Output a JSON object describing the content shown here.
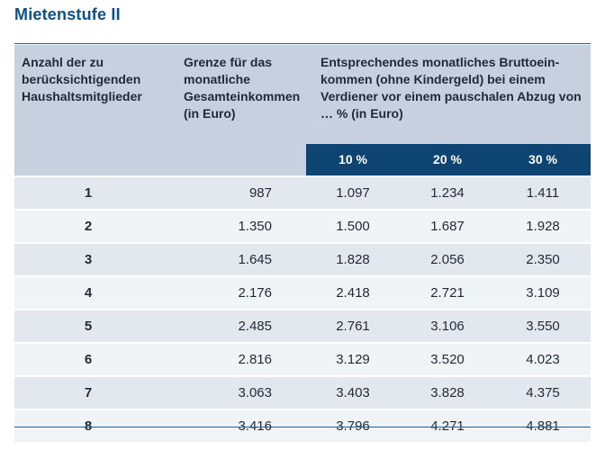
{
  "title": "Mietenstufe II",
  "header": {
    "col1": "Anzahl der zu berücksichtigenden Haushaltsmitglieder",
    "col2": "Grenze für das monatliche Gesamteinkommen (in Euro)",
    "col3": "Entsprechendes monatliches Bruttoein- kommen (ohne Kindergeld) bei einem Verdiener vor einem pauschalen Abzug von … % (in Euro)",
    "pct": [
      "10 %",
      "20 %",
      "30 %"
    ]
  },
  "rows": [
    {
      "n": "1",
      "g": "987",
      "v": [
        "1.097",
        "1.234",
        "1.411"
      ]
    },
    {
      "n": "2",
      "g": "1.350",
      "v": [
        "1.500",
        "1.687",
        "1.928"
      ]
    },
    {
      "n": "3",
      "g": "1.645",
      "v": [
        "1.828",
        "2.056",
        "2.350"
      ]
    },
    {
      "n": "4",
      "g": "2.176",
      "v": [
        "2.418",
        "2.721",
        "3.109"
      ]
    },
    {
      "n": "5",
      "g": "2.485",
      "v": [
        "2.761",
        "3.106",
        "3.550"
      ]
    },
    {
      "n": "6",
      "g": "2.816",
      "v": [
        "3.129",
        "3.520",
        "4.023"
      ]
    },
    {
      "n": "7",
      "g": "3.063",
      "v": [
        "3.403",
        "3.828",
        "4.375"
      ]
    },
    {
      "n": "8",
      "g": "3.416",
      "v": [
        "3.796",
        "4.271",
        "4.881"
      ]
    }
  ]
}
